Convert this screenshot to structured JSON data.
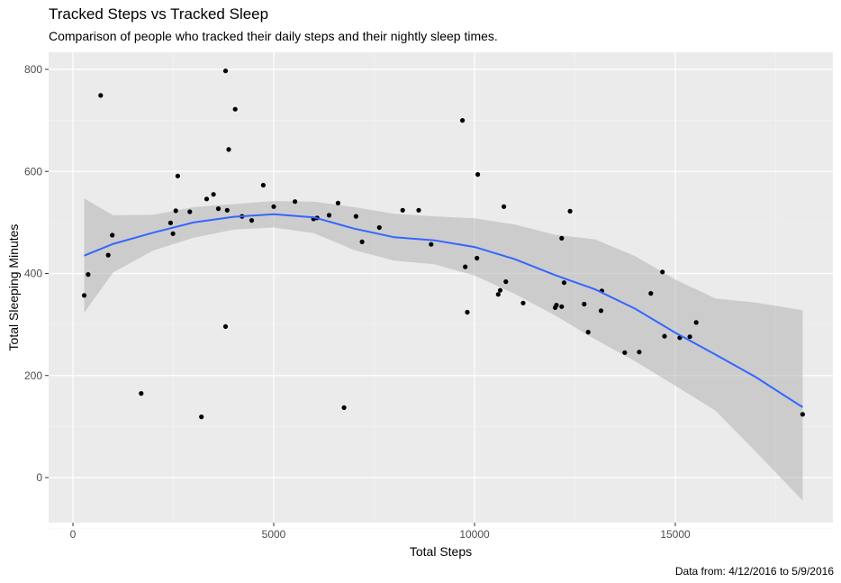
{
  "chart_data": {
    "type": "scatter",
    "title": "Tracked Steps vs Tracked Sleep",
    "subtitle": "Comparison of people who tracked their daily steps and  their nightly sleep times.",
    "caption": "Data from: 4/12/2016 to 5/9/2016",
    "xlabel": "Total Steps",
    "ylabel": "Total Sleeping Minutes",
    "xlim": [
      -600,
      18800
    ],
    "ylim": [
      -110,
      830
    ],
    "x_ticks": [
      0,
      5000,
      10000,
      15000
    ],
    "y_ticks": [
      0,
      200,
      400,
      600,
      800
    ],
    "grid": true,
    "background": "#ebebeb",
    "point_color": "#000000",
    "smooth_color": "#3366ff",
    "band_color": "#b3b3b3",
    "points": [
      {
        "x": 280,
        "y": 357
      },
      {
        "x": 380,
        "y": 398
      },
      {
        "x": 690,
        "y": 749
      },
      {
        "x": 880,
        "y": 436
      },
      {
        "x": 980,
        "y": 475
      },
      {
        "x": 1700,
        "y": 165
      },
      {
        "x": 2430,
        "y": 499
      },
      {
        "x": 2490,
        "y": 478
      },
      {
        "x": 2560,
        "y": 523
      },
      {
        "x": 2610,
        "y": 591
      },
      {
        "x": 2910,
        "y": 521
      },
      {
        "x": 3200,
        "y": 119
      },
      {
        "x": 3330,
        "y": 546
      },
      {
        "x": 3500,
        "y": 555
      },
      {
        "x": 3620,
        "y": 527
      },
      {
        "x": 3800,
        "y": 797
      },
      {
        "x": 3800,
        "y": 296
      },
      {
        "x": 3840,
        "y": 524
      },
      {
        "x": 3880,
        "y": 643
      },
      {
        "x": 4040,
        "y": 722
      },
      {
        "x": 4210,
        "y": 512
      },
      {
        "x": 4450,
        "y": 504
      },
      {
        "x": 4740,
        "y": 573
      },
      {
        "x": 5000,
        "y": 531
      },
      {
        "x": 5530,
        "y": 541
      },
      {
        "x": 5990,
        "y": 507
      },
      {
        "x": 6080,
        "y": 509
      },
      {
        "x": 6380,
        "y": 514
      },
      {
        "x": 6600,
        "y": 538
      },
      {
        "x": 6750,
        "y": 137
      },
      {
        "x": 7050,
        "y": 512
      },
      {
        "x": 7200,
        "y": 462
      },
      {
        "x": 7630,
        "y": 490
      },
      {
        "x": 8210,
        "y": 524
      },
      {
        "x": 8610,
        "y": 524
      },
      {
        "x": 8920,
        "y": 457
      },
      {
        "x": 9700,
        "y": 700
      },
      {
        "x": 9770,
        "y": 413
      },
      {
        "x": 9820,
        "y": 324
      },
      {
        "x": 10060,
        "y": 430
      },
      {
        "x": 10080,
        "y": 594
      },
      {
        "x": 10590,
        "y": 359
      },
      {
        "x": 10640,
        "y": 367
      },
      {
        "x": 10730,
        "y": 531
      },
      {
        "x": 10780,
        "y": 384
      },
      {
        "x": 11210,
        "y": 342
      },
      {
        "x": 12010,
        "y": 333
      },
      {
        "x": 12040,
        "y": 338
      },
      {
        "x": 12170,
        "y": 335
      },
      {
        "x": 12170,
        "y": 469
      },
      {
        "x": 12230,
        "y": 382
      },
      {
        "x": 12380,
        "y": 522
      },
      {
        "x": 12730,
        "y": 340
      },
      {
        "x": 12830,
        "y": 285
      },
      {
        "x": 13150,
        "y": 327
      },
      {
        "x": 13170,
        "y": 366
      },
      {
        "x": 13740,
        "y": 245
      },
      {
        "x": 14100,
        "y": 246
      },
      {
        "x": 14390,
        "y": 361
      },
      {
        "x": 14680,
        "y": 403
      },
      {
        "x": 14730,
        "y": 277
      },
      {
        "x": 15110,
        "y": 274
      },
      {
        "x": 15360,
        "y": 276
      },
      {
        "x": 15520,
        "y": 304
      },
      {
        "x": 18170,
        "y": 124
      }
    ],
    "smooth": {
      "method": "loess",
      "x": [
        280,
        1000,
        2000,
        3000,
        4000,
        5000,
        6000,
        7000,
        8000,
        9000,
        10000,
        11000,
        12000,
        13000,
        14000,
        15000,
        16000,
        17000,
        18170
      ],
      "y": [
        435,
        458,
        480,
        500,
        511,
        516,
        510,
        488,
        471,
        465,
        452,
        428,
        397,
        369,
        331,
        284,
        241,
        197,
        138
      ],
      "lower": [
        323,
        402,
        445,
        470,
        486,
        490,
        479,
        446,
        425,
        418,
        396,
        360,
        318,
        271,
        228,
        180,
        131,
        51,
        -45
      ],
      "upper": [
        547,
        514,
        515,
        530,
        536,
        542,
        541,
        530,
        517,
        512,
        508,
        496,
        476,
        467,
        434,
        388,
        351,
        343,
        328
      ]
    }
  }
}
